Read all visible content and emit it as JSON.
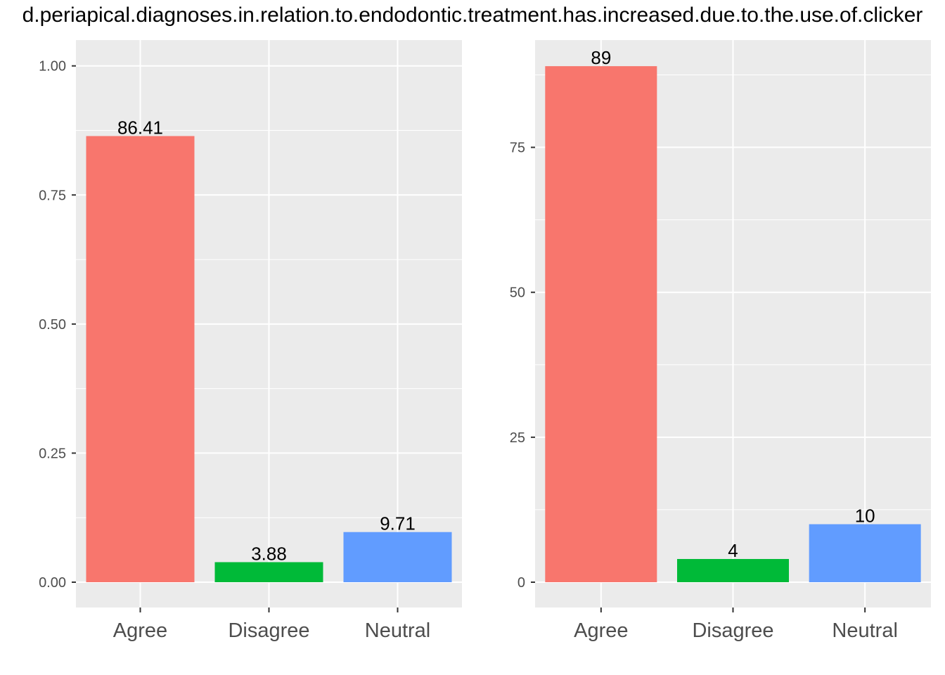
{
  "title": "d.periapical.diagnoses.in.relation.to.endodontic.treatment.has.increased.due.to.the.use.of.clicker",
  "colors": {
    "panel_bg": "#ebebeb",
    "grid": "#ffffff",
    "Agree": "#f8766d",
    "Disagree": "#00ba38",
    "Neutral": "#619cff"
  },
  "chart_data": [
    {
      "type": "bar",
      "categories": [
        "Agree",
        "Disagree",
        "Neutral"
      ],
      "values": [
        0.8641,
        0.0388,
        0.0971
      ],
      "data_labels": [
        "86.41",
        "3.88",
        "9.71"
      ],
      "ylim": [
        0,
        1.05
      ],
      "yticks": [
        0,
        0.25,
        0.5,
        0.75,
        1.0
      ],
      "ytick_labels": [
        "0.00",
        "0.25",
        "0.50",
        "0.75",
        "1.00"
      ],
      "grid": true,
      "legend": "none"
    },
    {
      "type": "bar",
      "categories": [
        "Agree",
        "Disagree",
        "Neutral"
      ],
      "values": [
        89,
        4,
        10
      ],
      "data_labels": [
        "89",
        "4",
        "10"
      ],
      "ylim": [
        0,
        93.5
      ],
      "yticks": [
        0,
        25,
        50,
        75
      ],
      "ytick_labels": [
        "0",
        "25",
        "50",
        "75"
      ],
      "grid": true,
      "legend": "none"
    }
  ]
}
